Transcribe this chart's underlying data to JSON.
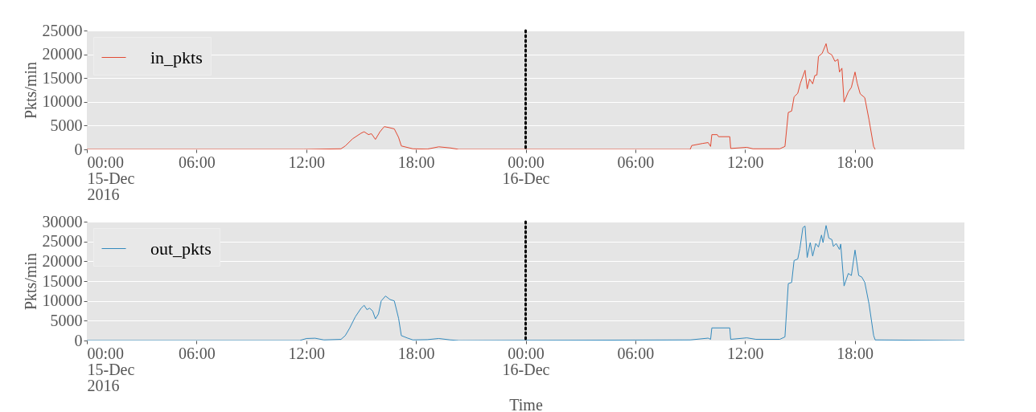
{
  "chart_data": [
    {
      "type": "line",
      "ylabel": "Pkts/min",
      "xlim": [
        "2016-12-15T00:00",
        "2016-12-17T00:00"
      ],
      "ylim": [
        0,
        25000
      ],
      "yticks": [
        0,
        5000,
        10000,
        15000,
        20000,
        25000
      ],
      "xticks": [
        {
          "value": "2016-12-15T00:00",
          "label": "00:00\n15-Dec\n2016"
        },
        {
          "value": "2016-12-15T06:00",
          "label": "06:00"
        },
        {
          "value": "2016-12-15T12:00",
          "label": "12:00"
        },
        {
          "value": "2016-12-15T18:00",
          "label": "18:00"
        },
        {
          "value": "2016-12-16T00:00",
          "label": "00:00\n16-Dec"
        },
        {
          "value": "2016-12-16T06:00",
          "label": "06:00"
        },
        {
          "value": "2016-12-16T12:00",
          "label": "12:00"
        },
        {
          "value": "2016-12-16T18:00",
          "label": "18:00"
        }
      ],
      "grid": "y",
      "legend": "top left",
      "ref_lines": [
        {
          "axis": "x",
          "value": "2016-12-16T00:00",
          "color": "#000000",
          "line_style": "dotted"
        }
      ],
      "series": [
        {
          "name": "in_pkts",
          "color": "#e24a33",
          "x": [
            "2016-12-15T00:00",
            "2016-12-15T11:52",
            "2016-12-15T13:54",
            "2016-12-15T14:08",
            "2016-12-15T14:32",
            "2016-12-15T15:00",
            "2016-12-15T15:10",
            "2016-12-15T15:24",
            "2016-12-15T15:34",
            "2016-12-15T15:47",
            "2016-12-15T16:02",
            "2016-12-15T16:16",
            "2016-12-15T16:30",
            "2016-12-15T16:49",
            "2016-12-15T17:03",
            "2016-12-15T17:12",
            "2016-12-15T17:50",
            "2016-12-15T18:37",
            "2016-12-15T19:15",
            "2016-12-15T19:53",
            "2016-12-15T20:21",
            "2016-12-16T09:00",
            "2016-12-16T09:05",
            "2016-12-16T09:40",
            "2016-12-16T09:59",
            "2016-12-16T10:07",
            "2016-12-16T10:11",
            "2016-12-16T10:29",
            "2016-12-16T10:33",
            "2016-12-16T11:10",
            "2016-12-16T11:13",
            "2016-12-16T12:06",
            "2016-12-16T12:26",
            "2016-12-16T13:54",
            "2016-12-16T14:11",
            "2016-12-16T14:22",
            "2016-12-16T14:33",
            "2016-12-16T14:41",
            "2016-12-16T14:53",
            "2016-12-16T15:02",
            "2016-12-16T15:17",
            "2016-12-16T15:24",
            "2016-12-16T15:32",
            "2016-12-16T15:42",
            "2016-12-16T15:49",
            "2016-12-16T15:56",
            "2016-12-16T16:01",
            "2016-12-16T16:13",
            "2016-12-16T16:26",
            "2016-12-16T16:32",
            "2016-12-16T16:45",
            "2016-12-16T16:55",
            "2016-12-16T17:05",
            "2016-12-16T17:10",
            "2016-12-16T17:18",
            "2016-12-16T17:25",
            "2016-12-16T17:39",
            "2016-12-16T17:49",
            "2016-12-16T18:01",
            "2016-12-16T18:08",
            "2016-12-16T18:18",
            "2016-12-16T18:33",
            "2016-12-16T18:47",
            "2016-12-16T19:02",
            "2016-12-16T19:07"
          ],
          "values": [
            0,
            0,
            120,
            720,
            2220,
            3410,
            3710,
            3110,
            3290,
            2100,
            3710,
            4790,
            4610,
            4310,
            2520,
            720,
            120,
            60,
            540,
            300,
            0,
            0,
            810,
            1240,
            1430,
            620,
            3100,
            3100,
            2670,
            2670,
            190,
            430,
            120,
            120,
            620,
            7760,
            8070,
            11050,
            11800,
            13970,
            16640,
            12730,
            14780,
            13790,
            15530,
            15650,
            19560,
            20180,
            22230,
            20370,
            19870,
            18510,
            18940,
            16270,
            17080,
            9940,
            12110,
            13040,
            16270,
            13970,
            11680,
            10870,
            6210,
            620,
            0
          ]
        }
      ]
    },
    {
      "type": "line",
      "xlabel": "Time",
      "ylabel": "Pkts/min",
      "xlim": [
        "2016-12-15T00:00",
        "2016-12-17T00:00"
      ],
      "ylim": [
        0,
        30000
      ],
      "yticks": [
        0,
        5000,
        10000,
        15000,
        20000,
        25000,
        30000
      ],
      "xticks": [
        {
          "value": "2016-12-15T00:00",
          "label": "00:00\n15-Dec\n2016"
        },
        {
          "value": "2016-12-15T06:00",
          "label": "06:00"
        },
        {
          "value": "2016-12-15T12:00",
          "label": "12:00"
        },
        {
          "value": "2016-12-15T18:00",
          "label": "18:00"
        },
        {
          "value": "2016-12-16T00:00",
          "label": "00:00\n16-Dec"
        },
        {
          "value": "2016-12-16T06:00",
          "label": "06:00"
        },
        {
          "value": "2016-12-16T12:00",
          "label": "12:00"
        },
        {
          "value": "2016-12-16T18:00",
          "label": "18:00"
        }
      ],
      "grid": "y",
      "legend": "top left",
      "ref_lines": [
        {
          "axis": "x",
          "value": "2016-12-16T00:00",
          "color": "#000000",
          "line_style": "dotted"
        }
      ],
      "series": [
        {
          "name": "out_pkts",
          "color": "#348abd",
          "x": [
            "2016-12-15T00:00",
            "2016-12-15T11:38",
            "2016-12-15T12:01",
            "2016-12-15T12:29",
            "2016-12-15T12:58",
            "2016-12-15T13:54",
            "2016-12-15T14:08",
            "2016-12-15T14:22",
            "2016-12-15T14:41",
            "2016-12-15T15:00",
            "2016-12-15T15:10",
            "2016-12-15T15:19",
            "2016-12-15T15:28",
            "2016-12-15T15:38",
            "2016-12-15T15:47",
            "2016-12-15T15:57",
            "2016-12-15T16:06",
            "2016-12-15T16:20",
            "2016-12-15T16:35",
            "2016-12-15T16:49",
            "2016-12-15T17:03",
            "2016-12-15T17:12",
            "2016-12-15T17:31",
            "2016-12-15T17:50",
            "2016-12-15T18:37",
            "2016-12-15T19:15",
            "2016-12-15T19:53",
            "2016-12-15T20:21",
            "2016-12-16T09:00",
            "2016-12-16T09:59",
            "2016-12-16T10:07",
            "2016-12-16T10:11",
            "2016-12-16T11:10",
            "2016-12-16T11:13",
            "2016-12-16T12:06",
            "2016-12-16T12:36",
            "2016-12-16T13:54",
            "2016-12-16T14:11",
            "2016-12-16T14:22",
            "2016-12-16T14:33",
            "2016-12-16T14:41",
            "2016-12-16T14:53",
            "2016-12-16T15:00",
            "2016-12-16T15:10",
            "2016-12-16T15:17",
            "2016-12-16T15:24",
            "2016-12-16T15:34",
            "2016-12-16T15:42",
            "2016-12-16T15:52",
            "2016-12-16T16:01",
            "2016-12-16T16:11",
            "2016-12-16T16:16",
            "2016-12-16T16:26",
            "2016-12-16T16:35",
            "2016-12-16T16:45",
            "2016-12-16T16:50",
            "2016-12-16T16:59",
            "2016-12-16T17:10",
            "2016-12-16T17:14",
            "2016-12-16T17:25",
            "2016-12-16T17:39",
            "2016-12-16T17:49",
            "2016-12-16T18:01",
            "2016-12-16T18:13",
            "2016-12-16T18:23",
            "2016-12-16T18:33",
            "2016-12-16T18:47",
            "2016-12-16T19:02",
            "2016-12-16T19:07",
            "2016-12-17T00:00"
          ],
          "values": [
            0,
            0,
            510,
            580,
            150,
            290,
            1240,
            3060,
            5980,
            8160,
            8890,
            7800,
            8160,
            7440,
            5470,
            6710,
            9990,
            11230,
            10350,
            9990,
            5610,
            1240,
            660,
            150,
            220,
            510,
            150,
            0,
            150,
            600,
            300,
            3180,
            3180,
            300,
            680,
            300,
            300,
            910,
            14360,
            14670,
            20190,
            20560,
            23210,
            28500,
            28880,
            20940,
            24720,
            21320,
            24490,
            23590,
            26610,
            24720,
            29030,
            25850,
            25480,
            23740,
            24490,
            22980,
            24340,
            13760,
            16930,
            16410,
            22830,
            16410,
            16030,
            14670,
            9220,
            1290,
            150,
            0
          ]
        }
      ]
    }
  ]
}
